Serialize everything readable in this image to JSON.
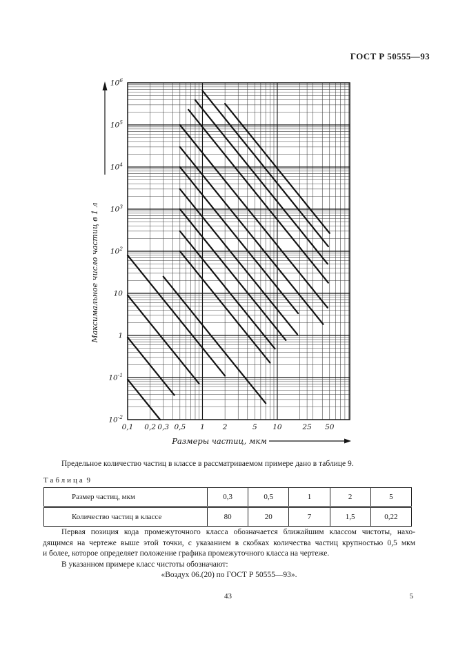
{
  "header": {
    "text": "ГОСТ Р 50555—93"
  },
  "caption": {
    "text": "Предельное количество частиц в классе в рассматриваемом примере дано  в таблице 9."
  },
  "table": {
    "label_word": "Таблица",
    "label_number": "9",
    "rows": [
      {
        "header": "Размер частиц,  мкм",
        "values": [
          "0,3",
          "0,5",
          "1",
          "2",
          "5"
        ]
      },
      {
        "header": "Количество частиц в классе",
        "values": [
          "80",
          "20",
          "7",
          "1,5",
          "0,22"
        ]
      }
    ]
  },
  "paragraph": {
    "lines": [
      "Первая позиция кода промежуточного класса обозначается ближайшим классом чистоты, нахо-",
      "дящимся на чертеже выше этой точки, с указанием в скобках количества частиц крупностью 0,5 мкм",
      "и более, которое определяет положение графика промежуточного класса на чертеже.",
      "В указанном примере класс чистоты обозначают:",
      "«Воздух 06.(20) по ГОСТ Р 50555—93»."
    ]
  },
  "footer": {
    "page_center": "43",
    "page_right": "5"
  },
  "chart_data": {
    "type": "line",
    "title": "",
    "xlabel": "Размеры частиц, мкм",
    "ylabel": "Максимальное число частиц в 1 л",
    "xscale": "log",
    "yscale": "log",
    "xlim": [
      0.1,
      93
    ],
    "ylim": [
      0.01,
      1000000
    ],
    "grid": "log-minor-and-major",
    "x_ticks": [
      {
        "v": 0.1,
        "label": "0,1"
      },
      {
        "v": 0.2,
        "label": "0,2"
      },
      {
        "v": 0.3,
        "label": "0,3"
      },
      {
        "v": 0.5,
        "label": "0,5"
      },
      {
        "v": 1,
        "label": "1"
      },
      {
        "v": 2,
        "label": "2"
      },
      {
        "v": 5,
        "label": "5"
      },
      {
        "v": 10,
        "label": "10"
      },
      {
        "v": 25,
        "label": "25"
      },
      {
        "v": 50,
        "label": "50"
      }
    ],
    "y_ticks": [
      {
        "v": 1000000,
        "label": "10^6"
      },
      {
        "v": 100000,
        "label": "10^5"
      },
      {
        "v": 10000,
        "label": "10^4"
      },
      {
        "v": 1000,
        "label": "10^3"
      },
      {
        "v": 100,
        "label": "10^2"
      },
      {
        "v": 10,
        "label": "10"
      },
      {
        "v": 1,
        "label": "1"
      },
      {
        "v": 0.1,
        "label": "10^-1"
      },
      {
        "v": 0.01,
        "label": "10^-2"
      }
    ],
    "slope": -2.2,
    "series": [
      {
        "name": "class-line-1",
        "x_start": 2.0,
        "n_start": 320000,
        "x_end": 50
      },
      {
        "name": "class-line-2",
        "x_start": 1.0,
        "n_start": 650000,
        "x_end": 48
      },
      {
        "name": "class-line-3",
        "x_start": 0.8,
        "n_start": 390000,
        "x_end": 47
      },
      {
        "name": "class-line-4",
        "x_start": 0.65,
        "n_start": 230000,
        "x_end": 48
      },
      {
        "name": "class-line-5",
        "x_start": 0.5,
        "n_start": 100000,
        "x_end": 47
      },
      {
        "name": "class-line-6",
        "x_start": 0.5,
        "n_start": 30000,
        "x_end": 41
      },
      {
        "name": "class-line-7",
        "x_start": 0.5,
        "n_start": 10000,
        "x_end": 19
      },
      {
        "name": "class-line-8",
        "x_start": 0.5,
        "n_start": 3000,
        "x_end": 18.5
      },
      {
        "name": "class-line-9",
        "x_start": 0.5,
        "n_start": 1000,
        "x_end": 13
      },
      {
        "name": "class-line-10",
        "x_start": 0.5,
        "n_start": 300,
        "x_end": 9.3
      },
      {
        "name": "class-line-11",
        "x_start": 0.5,
        "n_start": 100,
        "x_end": 8
      },
      {
        "name": "class-line-12",
        "x_start": 0.3,
        "n_start": 25,
        "x_end": 7
      },
      {
        "name": "class-line-13",
        "x_start": 0.1,
        "n_start": 80,
        "x_end": 2.0
      },
      {
        "name": "class-line-14",
        "x_start": 0.1,
        "n_start": 9,
        "x_end": 0.9
      },
      {
        "name": "class-line-15",
        "x_start": 0.1,
        "n_start": 0.9,
        "x_end": 0.42
      },
      {
        "name": "class-line-16",
        "x_start": 0.1,
        "n_start": 0.09,
        "x_end": 0.3
      }
    ]
  }
}
